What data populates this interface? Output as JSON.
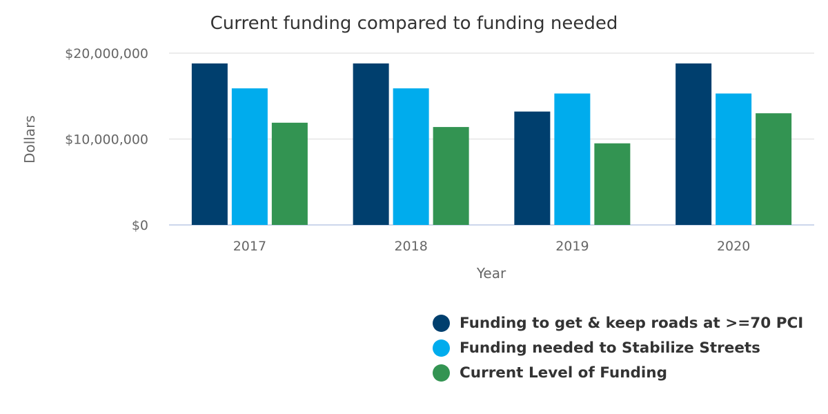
{
  "chart_data": {
    "type": "bar",
    "title": "Current funding compared to funding needed",
    "xlabel": "Year",
    "ylabel": "Dollars",
    "categories": [
      "2017",
      "2018",
      "2019",
      "2020"
    ],
    "y_ticks": [
      0,
      10000000,
      20000000
    ],
    "y_tick_labels": [
      "$0",
      "$10,000,000",
      "$20,000,000"
    ],
    "ylim": [
      0,
      20000000
    ],
    "grid": true,
    "legend_position": "bottom-right",
    "series": [
      {
        "name": "Funding to get & keep roads at >=70 PCI",
        "color": "#003f6e",
        "values": [
          18800000,
          18800000,
          13200000,
          18800000
        ]
      },
      {
        "name": "Funding needed to Stabilize Streets",
        "color": "#00aced",
        "values": [
          15900000,
          15900000,
          15300000,
          15300000
        ]
      },
      {
        "name": "Current Level of Funding",
        "color": "#339452",
        "values": [
          11900000,
          11400000,
          9500000,
          13000000
        ]
      }
    ]
  }
}
